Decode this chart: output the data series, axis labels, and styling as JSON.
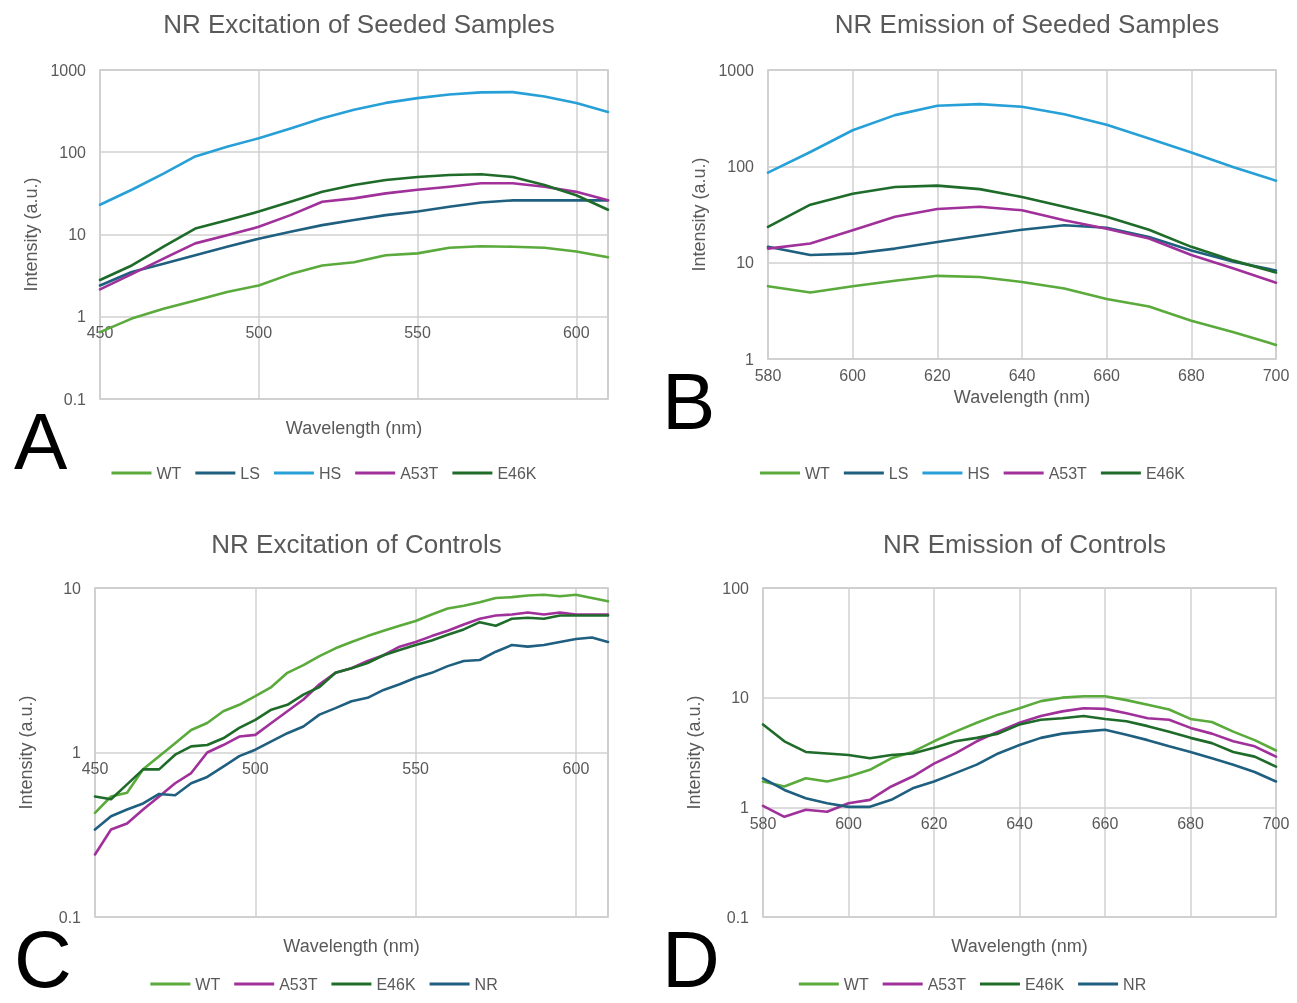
{
  "chart_data": [
    {
      "type": "line",
      "title": "NR Excitation of Seeded Samples",
      "xlabel": "Wavelength (nm)",
      "ylabel": "Intensity (a.u.)",
      "annotations": [
        "A"
      ],
      "x": [
        450,
        460,
        470,
        480,
        490,
        500,
        510,
        520,
        530,
        540,
        550,
        560,
        570,
        580,
        590,
        600,
        610
      ],
      "xlim": [
        450,
        610
      ],
      "xticks": [
        450,
        500,
        550,
        600
      ],
      "ylim": [
        0.1,
        1000
      ],
      "yticks": [
        0.1,
        1,
        10,
        100,
        1000
      ],
      "log": "y",
      "grid": true,
      "legend": "bottom",
      "marker": "none",
      "line_style": "solid",
      "series": [
        {
          "name": "WT",
          "color": "#5aaa3c",
          "values": [
            0.65,
            0.95,
            1.25,
            1.58,
            2.0,
            2.4,
            3.3,
            4.2,
            4.6,
            5.6,
            5.9,
            6.9,
            7.2,
            7.1,
            6.9,
            6.2,
            5.3
          ]
        },
        {
          "name": "LS",
          "color": "#1f5f7f",
          "values": [
            2.4,
            3.5,
            4.4,
            5.6,
            7.1,
            8.9,
            10.8,
            13,
            15,
            17.2,
            19,
            21.7,
            24.5,
            26,
            26,
            26,
            26
          ]
        },
        {
          "name": "HS",
          "color": "#27a0d8",
          "values": [
            23,
            35,
            55,
            89,
            117,
            148,
            195,
            259,
            329,
            398,
            455,
            503,
            535,
            538,
            476,
            398,
            309
          ]
        },
        {
          "name": "A53T",
          "color": "#a0309a",
          "values": [
            2.15,
            3.3,
            5.1,
            7.8,
            9.8,
            12.4,
            17.2,
            25,
            27.5,
            31.6,
            35,
            38,
            42,
            42,
            38,
            33,
            26
          ]
        },
        {
          "name": "E46K",
          "color": "#1e6b2a",
          "values": [
            2.8,
            4.2,
            7.1,
            11.8,
            14.9,
            19,
            25,
            33,
            40,
            46,
            50,
            53,
            54,
            50,
            40,
            30,
            20
          ]
        }
      ]
    },
    {
      "type": "line",
      "title": "NR Emission of Seeded Samples",
      "xlabel": "Wavelength (nm)",
      "ylabel": "Intensity (a.u.)",
      "annotations": [
        "B"
      ],
      "x": [
        580,
        590,
        600,
        610,
        620,
        630,
        640,
        650,
        660,
        670,
        680,
        690,
        700
      ],
      "xlim": [
        580,
        700
      ],
      "xticks": [
        580,
        600,
        620,
        640,
        660,
        680,
        700
      ],
      "ylim": [
        1,
        1000
      ],
      "yticks": [
        1,
        10,
        100,
        1000
      ],
      "log": "y",
      "grid": true,
      "legend": "bottom",
      "marker": "none",
      "line_style": "solid",
      "series": [
        {
          "name": "WT",
          "color": "#5aaa3c",
          "values": [
            5.7,
            4.9,
            5.7,
            6.5,
            7.3,
            7.1,
            6.3,
            5.4,
            4.2,
            3.5,
            2.5,
            1.9,
            1.4
          ]
        },
        {
          "name": "LS",
          "color": "#1f5f7f",
          "values": [
            14.6,
            12,
            12.4,
            14,
            16.4,
            19,
            22,
            24.5,
            23,
            18.5,
            13.4,
            10.2,
            8.3
          ]
        },
        {
          "name": "HS",
          "color": "#27a0d8",
          "values": [
            86,
            141,
            237,
            340,
            425,
            442,
            416,
            347,
            270,
            195,
            139,
            98,
            71
          ]
        },
        {
          "name": "A53T",
          "color": "#a0309a",
          "values": [
            14,
            15.8,
            21.7,
            30,
            36,
            38,
            35,
            27.6,
            22.5,
            17.8,
            12,
            8.7,
            6.2
          ]
        },
        {
          "name": "E46K",
          "color": "#1e6b2a",
          "values": [
            23.5,
            40,
            52,
            61,
            63,
            58,
            48,
            38,
            30,
            22,
            14.6,
            10.5,
            7.9
          ]
        }
      ]
    },
    {
      "type": "line",
      "title": "NR Excitation of Controls",
      "xlabel": "Wavelength (nm)",
      "ylabel": "Intensity (a.u.)",
      "annotations": [
        "C"
      ],
      "x": [
        450,
        455,
        460,
        465,
        470,
        475,
        480,
        485,
        490,
        495,
        500,
        505,
        510,
        515,
        520,
        525,
        530,
        535,
        540,
        545,
        550,
        555,
        560,
        565,
        570,
        575,
        580,
        585,
        590,
        595,
        600,
        605,
        610
      ],
      "xlim": [
        450,
        610
      ],
      "xticks": [
        450,
        500,
        550,
        600
      ],
      "ylim": [
        0.1,
        10
      ],
      "yticks": [
        0.1,
        1,
        10
      ],
      "log": "y",
      "grid": true,
      "legend": "bottom",
      "marker": "none",
      "line_style": "solid",
      "series": [
        {
          "name": "WT",
          "color": "#5aaa3c",
          "values": [
            0.43,
            0.54,
            0.57,
            0.79,
            0.95,
            1.14,
            1.37,
            1.51,
            1.78,
            1.95,
            2.2,
            2.5,
            3.05,
            3.4,
            3.85,
            4.3,
            4.7,
            5.1,
            5.5,
            5.9,
            6.3,
            6.9,
            7.5,
            7.8,
            8.2,
            8.7,
            8.8,
            9.0,
            9.1,
            8.9,
            9.1,
            8.7,
            8.3
          ]
        },
        {
          "name": "A53T",
          "color": "#a0309a",
          "values": [
            0.24,
            0.34,
            0.37,
            0.45,
            0.54,
            0.65,
            0.75,
            1.0,
            1.11,
            1.25,
            1.28,
            1.51,
            1.78,
            2.1,
            2.6,
            3.05,
            3.25,
            3.6,
            3.9,
            4.4,
            4.7,
            5.1,
            5.5,
            6.0,
            6.5,
            6.8,
            6.9,
            7.1,
            6.9,
            7.1,
            6.9,
            6.9,
            6.9
          ]
        },
        {
          "name": "E46K",
          "color": "#1e6b2a",
          "values": [
            0.54,
            0.52,
            0.64,
            0.79,
            0.79,
            0.97,
            1.09,
            1.11,
            1.22,
            1.41,
            1.58,
            1.82,
            1.95,
            2.25,
            2.5,
            3.05,
            3.25,
            3.5,
            3.9,
            4.2,
            4.5,
            4.8,
            5.2,
            5.6,
            6.2,
            5.9,
            6.5,
            6.6,
            6.5,
            6.8,
            6.8,
            6.8,
            6.8
          ]
        },
        {
          "name": "NR",
          "color": "#1f5f7f",
          "values": [
            0.34,
            0.41,
            0.45,
            0.49,
            0.56,
            0.55,
            0.65,
            0.71,
            0.82,
            0.95,
            1.04,
            1.17,
            1.31,
            1.44,
            1.7,
            1.86,
            2.05,
            2.15,
            2.4,
            2.6,
            2.85,
            3.05,
            3.35,
            3.6,
            3.65,
            4.1,
            4.5,
            4.4,
            4.5,
            4.7,
            4.9,
            5.0,
            4.7
          ]
        }
      ]
    },
    {
      "type": "line",
      "title": "NR Emission of Controls",
      "xlabel": "Wavelength (nm)",
      "ylabel": "Intensity (a.u.)",
      "annotations": [
        "D"
      ],
      "x": [
        580,
        585,
        590,
        595,
        600,
        605,
        610,
        615,
        620,
        625,
        630,
        635,
        640,
        645,
        650,
        655,
        660,
        665,
        670,
        675,
        680,
        685,
        690,
        695,
        700
      ],
      "xlim": [
        580,
        700
      ],
      "xticks": [
        580,
        600,
        620,
        640,
        660,
        680,
        700
      ],
      "ylim": [
        0.1,
        100
      ],
      "yticks": [
        0.1,
        1,
        10,
        100
      ],
      "log": "y",
      "grid": true,
      "legend": "bottom",
      "marker": "none",
      "line_style": "solid",
      "series": [
        {
          "name": "WT",
          "color": "#5aaa3c",
          "values": [
            1.72,
            1.55,
            1.84,
            1.72,
            1.91,
            2.2,
            2.8,
            3.2,
            4.0,
            4.9,
            5.9,
            7.0,
            8.0,
            9.3,
            10,
            10.3,
            10.3,
            9.5,
            8.6,
            7.8,
            6.4,
            6.0,
            4.9,
            4.1,
            3.3
          ]
        },
        {
          "name": "A53T",
          "color": "#a0309a",
          "values": [
            1.03,
            0.82,
            0.95,
            0.91,
            1.09,
            1.17,
            1.55,
            1.91,
            2.5,
            3.1,
            4.0,
            4.9,
            5.9,
            6.8,
            7.5,
            8.0,
            7.9,
            7.2,
            6.5,
            6.3,
            5.3,
            4.7,
            4.0,
            3.6,
            2.9
          ]
        },
        {
          "name": "E46K",
          "color": "#1e6b2a",
          "values": [
            5.7,
            4.0,
            3.2,
            3.1,
            3.0,
            2.8,
            3.0,
            3.1,
            3.5,
            4.0,
            4.3,
            4.7,
            5.7,
            6.3,
            6.5,
            6.8,
            6.4,
            6.1,
            5.5,
            4.9,
            4.3,
            3.85,
            3.2,
            2.9,
            2.35
          ]
        },
        {
          "name": "NR",
          "color": "#1f5f7f",
          "values": [
            1.84,
            1.44,
            1.21,
            1.09,
            1.01,
            1.01,
            1.17,
            1.49,
            1.72,
            2.05,
            2.45,
            3.1,
            3.7,
            4.3,
            4.7,
            4.9,
            5.1,
            4.6,
            4.1,
            3.6,
            3.2,
            2.8,
            2.45,
            2.1,
            1.72
          ]
        }
      ]
    }
  ]
}
